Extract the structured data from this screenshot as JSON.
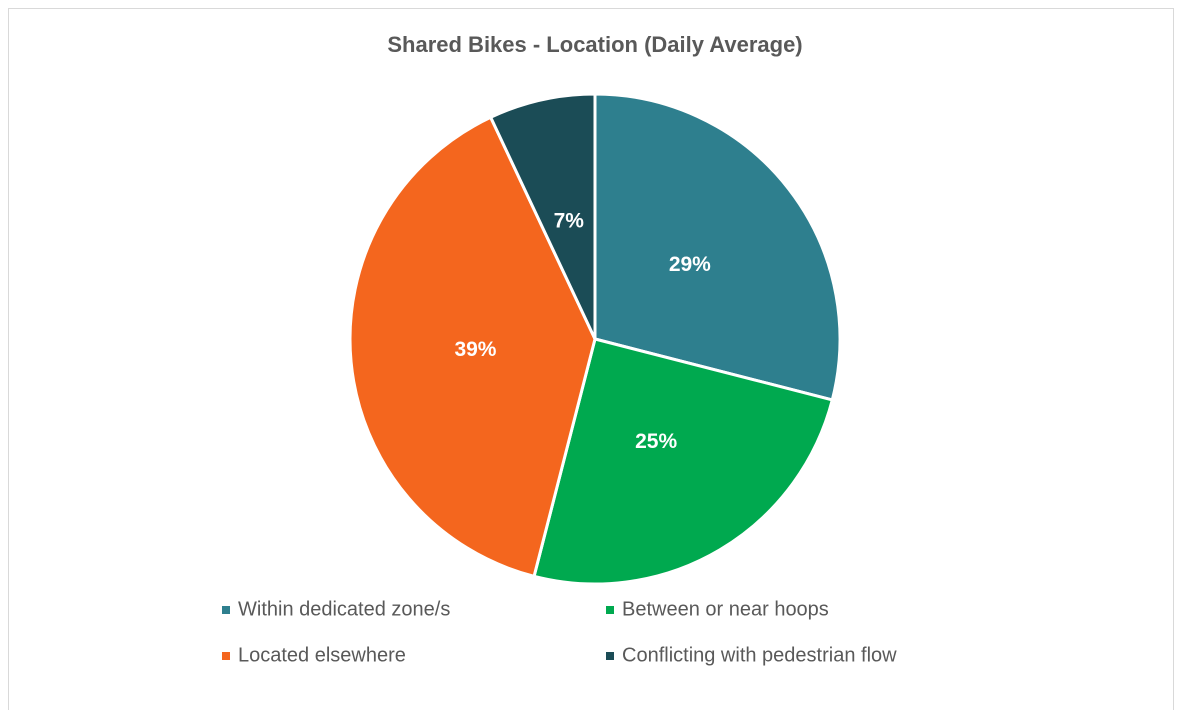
{
  "chart_data": {
    "type": "pie",
    "title": "Shared Bikes - Location (Daily Average)",
    "categories": [
      "Within dedicated zone/s",
      "Between or near hoops",
      "Located elsewhere",
      "Conflicting with pedestrian flow"
    ],
    "values": [
      29,
      25,
      39,
      7
    ],
    "value_labels": [
      "29%",
      "25%",
      "39%",
      "7%"
    ],
    "colors": [
      "#2e7f8e",
      "#00a94f",
      "#f4661e",
      "#1b4c56"
    ],
    "legend": "bottom"
  }
}
